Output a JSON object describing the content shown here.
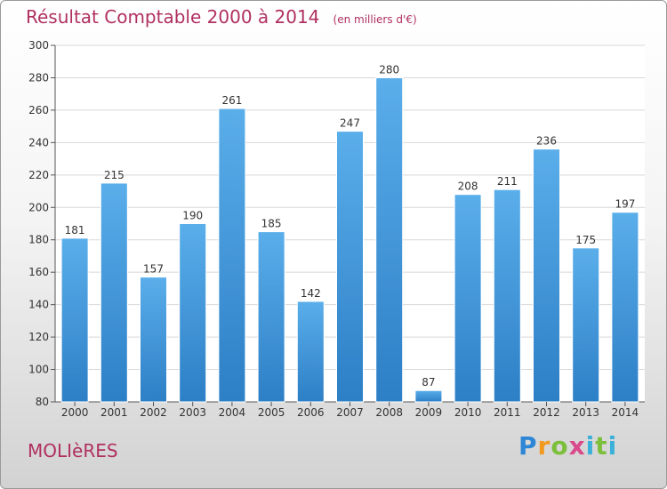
{
  "header": {
    "title": "Résultat Comptable 2000 à 2014",
    "unit": "(en milliers d'€)"
  },
  "footer": {
    "city": "MOLIèRES",
    "brand_letters": [
      "P",
      "r",
      "o",
      "x",
      "i",
      "t",
      "i"
    ]
  },
  "colors": {
    "bar_top": "#5aaeea",
    "bar_bottom": "#2d7fc6",
    "title": "#b03060",
    "grid": "#d8d8d8"
  },
  "chart_data": {
    "type": "bar",
    "title": "Résultat Comptable 2000 à 2014",
    "subtitle": "(en milliers d'€)",
    "xlabel": "",
    "ylabel": "",
    "categories": [
      "2000",
      "2001",
      "2002",
      "2003",
      "2004",
      "2005",
      "2006",
      "2007",
      "2008",
      "2009",
      "2010",
      "2011",
      "2012",
      "2013",
      "2014"
    ],
    "values": [
      181,
      215,
      157,
      190,
      261,
      185,
      142,
      247,
      280,
      87,
      208,
      211,
      236,
      175,
      197
    ],
    "ylim": [
      80,
      300
    ],
    "yticks": [
      80,
      100,
      120,
      140,
      160,
      180,
      200,
      220,
      240,
      260,
      280,
      300
    ],
    "grid": true,
    "data_labels": true
  }
}
